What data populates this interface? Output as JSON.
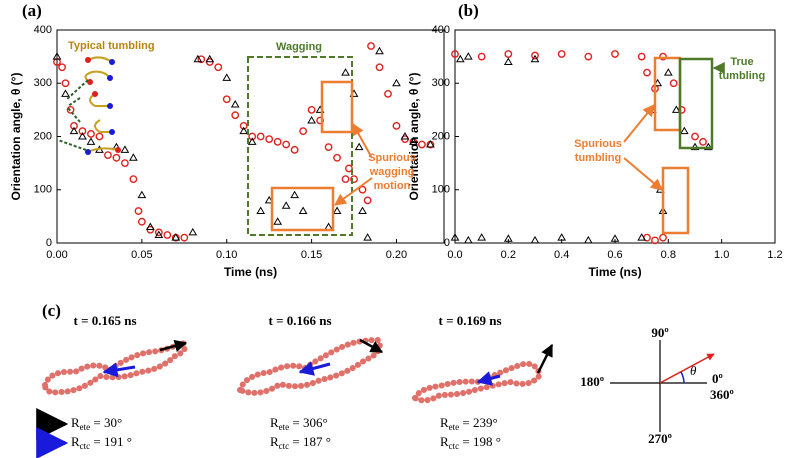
{
  "chart_data": [
    {
      "type": "scatter",
      "panel": "(a)",
      "x_label": "Time (ns)",
      "y_label": "Orientation angle, θ (°)",
      "xlim": [
        0,
        0.228
      ],
      "ylim": [
        0,
        400
      ],
      "xticks": [
        {
          "value": 0,
          "label": "0.00"
        },
        {
          "value": 0.05,
          "label": "0.05"
        },
        {
          "value": 0.1,
          "label": "0.10"
        },
        {
          "value": 0.15,
          "label": "0.15"
        },
        {
          "value": 0.2,
          "label": "0.20"
        }
      ],
      "yticks": [
        0,
        100,
        200,
        300,
        400
      ],
      "annotations": {
        "typical": "Typical tumbling",
        "wagging": "Wagging",
        "spurious": [
          "Spurious",
          "wagging",
          "motion"
        ]
      },
      "series": [
        {
          "color": "#e0201b",
          "marker": "circle",
          "x": [
            0,
            0.003,
            0.005,
            0.008,
            0.01,
            0.015,
            0.02,
            0.025,
            0.03,
            0.035,
            0.04,
            0.045,
            0.048,
            0.05,
            0.055,
            0.06,
            0.065,
            0.07,
            0.075,
            0.085,
            0.09,
            0.095,
            0.1,
            0.105,
            0.11,
            0.115,
            0.12,
            0.125,
            0.13,
            0.135,
            0.14,
            0.145,
            0.15,
            0.155,
            0.16,
            0.165,
            0.17,
            0.172,
            0.175,
            0.18,
            0.183,
            0.185,
            0.19,
            0.195,
            0.2,
            0.205,
            0.21,
            0.215,
            0.22
          ],
          "values": [
            340,
            330,
            300,
            250,
            220,
            210,
            205,
            200,
            165,
            160,
            150,
            120,
            60,
            40,
            25,
            20,
            15,
            10,
            10,
            345,
            340,
            330,
            270,
            240,
            220,
            200,
            200,
            195,
            190,
            185,
            175,
            210,
            250,
            230,
            180,
            160,
            120,
            140,
            120,
            100,
            80,
            370,
            330,
            280,
            220,
            195,
            190,
            185,
            185
          ]
        },
        {
          "color": "#000000",
          "marker": "triangle",
          "x": [
            0,
            0.005,
            0.01,
            0.015,
            0.02,
            0.025,
            0.035,
            0.04,
            0.045,
            0.05,
            0.055,
            0.06,
            0.07,
            0.08,
            0.083,
            0.09,
            0.1,
            0.105,
            0.11,
            0.115,
            0.12,
            0.125,
            0.13,
            0.135,
            0.14,
            0.145,
            0.15,
            0.155,
            0.16,
            0.165,
            0.17,
            0.175,
            0.178,
            0.18,
            0.183,
            0.19,
            0.2,
            0.205,
            0.21,
            0.22
          ],
          "values": [
            350,
            280,
            210,
            200,
            190,
            175,
            180,
            175,
            160,
            90,
            30,
            15,
            10,
            20,
            345,
            345,
            310,
            260,
            210,
            190,
            60,
            80,
            40,
            70,
            90,
            60,
            230,
            250,
            30,
            60,
            320,
            280,
            180,
            60,
            10,
            360,
            300,
            200,
            190,
            185
          ]
        }
      ]
    },
    {
      "type": "scatter",
      "panel": "(b)",
      "x_label": "Time (ns)",
      "y_label": "Orientation angle, θ (°)",
      "xlim": [
        0,
        1.2
      ],
      "ylim": [
        0,
        400
      ],
      "xticks": [
        {
          "value": 0,
          "label": "0.0"
        },
        {
          "value": 0.2,
          "label": "0.2"
        },
        {
          "value": 0.4,
          "label": "0.4"
        },
        {
          "value": 0.6,
          "label": "0.6"
        },
        {
          "value": 0.8,
          "label": "0.8"
        },
        {
          "value": 1,
          "label": "1.0"
        },
        {
          "value": 1.2,
          "label": "1.2"
        }
      ],
      "yticks": [
        0,
        100,
        200,
        300,
        400
      ],
      "annotations": {
        "true": [
          "True",
          "tumbling"
        ],
        "spurious": [
          "Spurious",
          "tumbling"
        ]
      },
      "series": [
        {
          "color": "#e0201b",
          "marker": "circle",
          "x": [
            0,
            0.1,
            0.2,
            0.3,
            0.4,
            0.5,
            0.6,
            0.7,
            0.72,
            0.75,
            0.78,
            0.82,
            0.85,
            0.9,
            0.93,
            0.72,
            0.75,
            0.78
          ],
          "values": [
            355,
            350,
            355,
            352,
            355,
            350,
            355,
            350,
            320,
            290,
            350,
            300,
            250,
            200,
            190,
            10,
            5,
            10
          ]
        },
        {
          "color": "#000000",
          "marker": "triangle",
          "x": [
            0,
            0.05,
            0.1,
            0.2,
            0.3,
            0.4,
            0.5,
            0.6,
            0.7,
            0.74,
            0.76,
            0.77,
            0.78,
            0.8,
            0.83,
            0.86,
            0.9,
            0.95,
            0.02,
            0.2,
            0.3,
            0.05
          ],
          "values": [
            10,
            5,
            10,
            8,
            5,
            10,
            5,
            8,
            10,
            250,
            300,
            100,
            60,
            320,
            250,
            210,
            180,
            180,
            345,
            340,
            345,
            350
          ]
        }
      ]
    }
  ],
  "panel_c": {
    "label": "(c)",
    "frames": [
      {
        "time": "t = 0.165 ns",
        "ete_value": " = 30°",
        "ctc_value": " = 191 °"
      },
      {
        "time": "t = 0.166 ns",
        "ete_value": " = 306°",
        "ctc_value": " = 187 °"
      },
      {
        "time": "t = 0.169 ns",
        "ete_value": " = 239°",
        "ctc_value": " = 198 °"
      }
    ],
    "symbol": "R",
    "ete": "ete",
    "ctc": "ctc",
    "compass": {
      "top": "90º",
      "left": "180º",
      "right_top": "0º",
      "right_bottom": "360º",
      "bottom": "270º",
      "angle": "θ"
    }
  }
}
